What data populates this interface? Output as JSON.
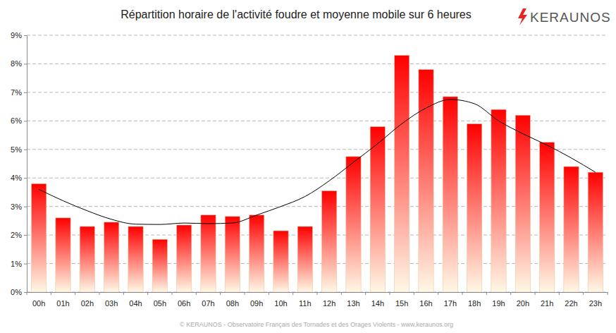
{
  "chart_data": {
    "type": "bar",
    "title": "Répartition horaire de l'activité foudre et moyenne mobile sur 6 heures",
    "logo": "KERAUNOS",
    "source": "© KERAUNOS - Observatoire Français des Tornades et des Orages Violents - www.keraunos.org",
    "categories": [
      "00h",
      "01h",
      "02h",
      "03h",
      "04h",
      "05h",
      "06h",
      "07h",
      "08h",
      "09h",
      "10h",
      "11h",
      "12h",
      "13h",
      "14h",
      "15h",
      "16h",
      "17h",
      "18h",
      "19h",
      "20h",
      "21h",
      "22h",
      "23h"
    ],
    "series": [
      {
        "type": "bar",
        "color": "#ff0000",
        "values": [
          3.8,
          2.6,
          2.3,
          2.45,
          2.3,
          1.85,
          2.35,
          2.7,
          2.65,
          2.7,
          2.15,
          2.3,
          3.55,
          4.75,
          5.8,
          8.3,
          7.8,
          6.85,
          5.9,
          6.4,
          6.2,
          5.25,
          4.4,
          4.2
        ]
      },
      {
        "type": "line",
        "color": "#000000",
        "line_style": "solid",
        "values": [
          3.6,
          3.2,
          2.85,
          2.55,
          2.38,
          2.37,
          2.42,
          2.4,
          2.42,
          2.7,
          3.0,
          3.35,
          3.9,
          4.55,
          5.2,
          5.9,
          6.45,
          6.75,
          6.6,
          6.0,
          5.55,
          5.15,
          4.7,
          4.2
        ]
      }
    ],
    "ylim": [
      0,
      9
    ],
    "yticks": [
      {
        "value": 0,
        "label": "0%"
      },
      {
        "value": 1,
        "label": "1%"
      },
      {
        "value": 2,
        "label": "2%"
      },
      {
        "value": 3,
        "label": "3%"
      },
      {
        "value": 4,
        "label": "4%"
      },
      {
        "value": 5,
        "label": "5%"
      },
      {
        "value": 6,
        "label": "6%"
      },
      {
        "value": 7,
        "label": "7%"
      },
      {
        "value": 8,
        "label": "8%"
      },
      {
        "value": 9,
        "label": "9%"
      }
    ],
    "grid": true
  }
}
